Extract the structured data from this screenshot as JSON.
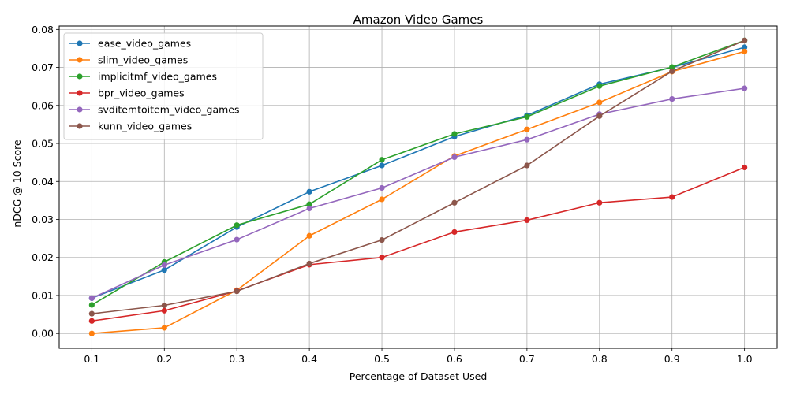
{
  "chart_data": {
    "type": "line",
    "title": "Amazon Video Games",
    "xlabel": "Percentage of Dataset Used",
    "ylabel": "nDCG @ 10 Score",
    "x": [
      0.1,
      0.2,
      0.3,
      0.4,
      0.5,
      0.6,
      0.7,
      0.8,
      0.9,
      1.0
    ],
    "x_tick_labels": [
      "0.1",
      "0.2",
      "0.3",
      "0.4",
      "0.5",
      "0.6",
      "0.7",
      "0.8",
      "0.9",
      "1.0"
    ],
    "y_ticks": [
      0.0,
      0.01,
      0.02,
      0.03,
      0.04,
      0.05,
      0.06,
      0.07,
      0.08
    ],
    "y_tick_labels": [
      "0.00",
      "0.01",
      "0.02",
      "0.03",
      "0.04",
      "0.05",
      "0.06",
      "0.07",
      "0.08"
    ],
    "xlim": [
      0.055,
      1.045
    ],
    "ylim": [
      -0.0039,
      0.0809
    ],
    "grid": true,
    "legend_position": "upper-left",
    "series": [
      {
        "name": "ease_video_games",
        "color": "#1f77b4",
        "values": [
          0.0093,
          0.0167,
          0.028,
          0.0373,
          0.0442,
          0.0518,
          0.0574,
          0.0656,
          0.07,
          0.0753
        ]
      },
      {
        "name": "slim_video_games",
        "color": "#ff7f0e",
        "values": [
          0.0,
          0.0015,
          0.0114,
          0.0257,
          0.0353,
          0.0467,
          0.0537,
          0.0608,
          0.0689,
          0.0742
        ]
      },
      {
        "name": "implicitmf_video_games",
        "color": "#2ca02c",
        "values": [
          0.0075,
          0.0188,
          0.0285,
          0.034,
          0.0457,
          0.0525,
          0.057,
          0.0651,
          0.0701,
          0.0771
        ]
      },
      {
        "name": "bpr_video_games",
        "color": "#d62728",
        "values": [
          0.0033,
          0.006,
          0.0112,
          0.0181,
          0.02,
          0.0267,
          0.0298,
          0.0344,
          0.0359,
          0.0437
        ]
      },
      {
        "name": "svditemtoitem_video_games",
        "color": "#9467bd",
        "values": [
          0.0093,
          0.018,
          0.0247,
          0.0329,
          0.0383,
          0.0464,
          0.051,
          0.0577,
          0.0617,
          0.0645
        ]
      },
      {
        "name": "kunn_video_games",
        "color": "#8c564b",
        "values": [
          0.0052,
          0.0074,
          0.0111,
          0.0184,
          0.0246,
          0.0344,
          0.0442,
          0.0572,
          0.069,
          0.0771
        ]
      }
    ]
  }
}
